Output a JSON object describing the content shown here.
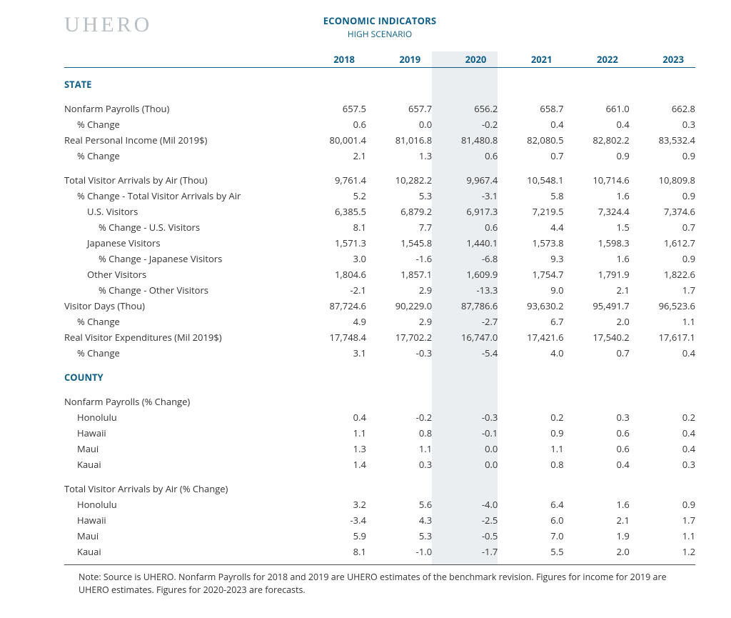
{
  "brand": "UHERO",
  "title": "ECONOMIC INDICATORS",
  "subtitle": "HIGH SCENARIO",
  "years": [
    "2018",
    "2019",
    "2020",
    "2021",
    "2022",
    "2023"
  ],
  "highlight_year_index": 2,
  "colors": {
    "accent": "#0f5e86",
    "logo": "#b9c0c5",
    "highlight_bg": "#ebeef0",
    "text": "#333333",
    "rule_bottom": "#4a4a4a",
    "background": "#ffffff"
  },
  "typography": {
    "body_pt": 13,
    "title_pt": 13,
    "subtitle_pt": 12,
    "logo_pt": 30,
    "note_pt": 12.5
  },
  "sections": [
    {
      "heading": "STATE",
      "groups": [
        [
          {
            "label": "Nonfarm Payrolls (Thou)",
            "indent": 0,
            "values": [
              "657.5",
              "657.7",
              "656.2",
              "658.7",
              "661.0",
              "662.8"
            ]
          },
          {
            "label": "% Change",
            "indent": 1,
            "values": [
              "0.6",
              "0.0",
              "-0.2",
              "0.4",
              "0.4",
              "0.3"
            ]
          },
          {
            "label": "Real Personal Income (Mil 2019$)",
            "indent": 0,
            "values": [
              "80,001.4",
              "81,016.8",
              "81,480.8",
              "82,080.5",
              "82,802.2",
              "83,532.4"
            ]
          },
          {
            "label": "% Change",
            "indent": 1,
            "values": [
              "2.1",
              "1.3",
              "0.6",
              "0.7",
              "0.9",
              "0.9"
            ]
          }
        ],
        [
          {
            "label": "Total Visitor Arrivals by Air (Thou)",
            "indent": 0,
            "values": [
              "9,761.4",
              "10,282.2",
              "9,967.4",
              "10,548.1",
              "10,714.6",
              "10,809.8"
            ]
          },
          {
            "label": "% Change - Total Visitor Arrivals by Air",
            "indent": 1,
            "values": [
              "5.2",
              "5.3",
              "-3.1",
              "5.8",
              "1.6",
              "0.9"
            ]
          },
          {
            "label": "U.S. Visitors",
            "indent": 2,
            "values": [
              "6,385.5",
              "6,879.2",
              "6,917.3",
              "7,219.5",
              "7,324.4",
              "7,374.6"
            ]
          },
          {
            "label": "% Change - U.S. Visitors",
            "indent": 3,
            "values": [
              "8.1",
              "7.7",
              "0.6",
              "4.4",
              "1.5",
              "0.7"
            ]
          },
          {
            "label": "Japanese Visitors",
            "indent": 2,
            "values": [
              "1,571.3",
              "1,545.8",
              "1,440.1",
              "1,573.8",
              "1,598.3",
              "1,612.7"
            ]
          },
          {
            "label": "% Change - Japanese Visitors",
            "indent": 3,
            "values": [
              "3.0",
              "-1.6",
              "-6.8",
              "9.3",
              "1.6",
              "0.9"
            ]
          },
          {
            "label": "Other Visitors",
            "indent": 2,
            "values": [
              "1,804.6",
              "1,857.1",
              "1,609.9",
              "1,754.7",
              "1,791.9",
              "1,822.6"
            ]
          },
          {
            "label": "% Change - Other Visitors",
            "indent": 3,
            "values": [
              "-2.1",
              "2.9",
              "-13.3",
              "9.0",
              "2.1",
              "1.7"
            ]
          },
          {
            "label": "Visitor Days (Thou)",
            "indent": 0,
            "values": [
              "87,724.6",
              "90,229.0",
              "87,786.6",
              "93,630.2",
              "95,491.7",
              "96,523.6"
            ]
          },
          {
            "label": "% Change",
            "indent": 1,
            "values": [
              "4.9",
              "2.9",
              "-2.7",
              "6.7",
              "2.0",
              "1.1"
            ]
          },
          {
            "label": "Real Visitor Expenditures (Mil 2019$)",
            "indent": 0,
            "values": [
              "17,748.4",
              "17,702.2",
              "16,747.0",
              "17,421.6",
              "17,540.2",
              "17,617.1"
            ]
          },
          {
            "label": "% Change",
            "indent": 1,
            "values": [
              "3.1",
              "-0.3",
              "-5.4",
              "4.0",
              "0.7",
              "0.4"
            ]
          }
        ]
      ]
    },
    {
      "heading": "COUNTY",
      "groups": [
        [
          {
            "label": "Nonfarm Payrolls (% Change)",
            "indent": 0,
            "values": [
              "",
              "",
              "",
              "",
              "",
              ""
            ]
          },
          {
            "label": "Honolulu",
            "indent": 1,
            "values": [
              "0.4",
              "-0.2",
              "-0.3",
              "0.2",
              "0.3",
              "0.2"
            ]
          },
          {
            "label": "Hawaii",
            "indent": 1,
            "values": [
              "1.1",
              "0.8",
              "-0.1",
              "0.9",
              "0.6",
              "0.4"
            ]
          },
          {
            "label": "Maui",
            "indent": 1,
            "values": [
              "1.3",
              "1.1",
              "0.0",
              "1.1",
              "0.6",
              "0.4"
            ]
          },
          {
            "label": "Kauai",
            "indent": 1,
            "values": [
              "1.4",
              "0.3",
              "0.0",
              "0.8",
              "0.4",
              "0.3"
            ]
          }
        ],
        [
          {
            "label": "Total Visitor Arrivals by Air (% Change)",
            "indent": 0,
            "values": [
              "",
              "",
              "",
              "",
              "",
              ""
            ]
          },
          {
            "label": "Honolulu",
            "indent": 1,
            "values": [
              "3.2",
              "5.6",
              "-4.0",
              "6.4",
              "1.6",
              "0.9"
            ]
          },
          {
            "label": "Hawaii",
            "indent": 1,
            "values": [
              "-3.4",
              "4.3",
              "-2.5",
              "6.0",
              "2.1",
              "1.7"
            ]
          },
          {
            "label": "Maui",
            "indent": 1,
            "values": [
              "5.9",
              "5.3",
              "-0.5",
              "7.0",
              "1.9",
              "1.1"
            ]
          },
          {
            "label": "Kauai",
            "indent": 1,
            "values": [
              "8.1",
              "-1.0",
              "-1.7",
              "5.5",
              "2.0",
              "1.2"
            ]
          }
        ]
      ]
    }
  ],
  "note": "Note: Source is UHERO. Nonfarm Payrolls for 2018 and 2019 are UHERO estimates of the benchmark revision. Figures for income for 2019 are UHERO estimates. Figures for 2020-2023 are forecasts."
}
